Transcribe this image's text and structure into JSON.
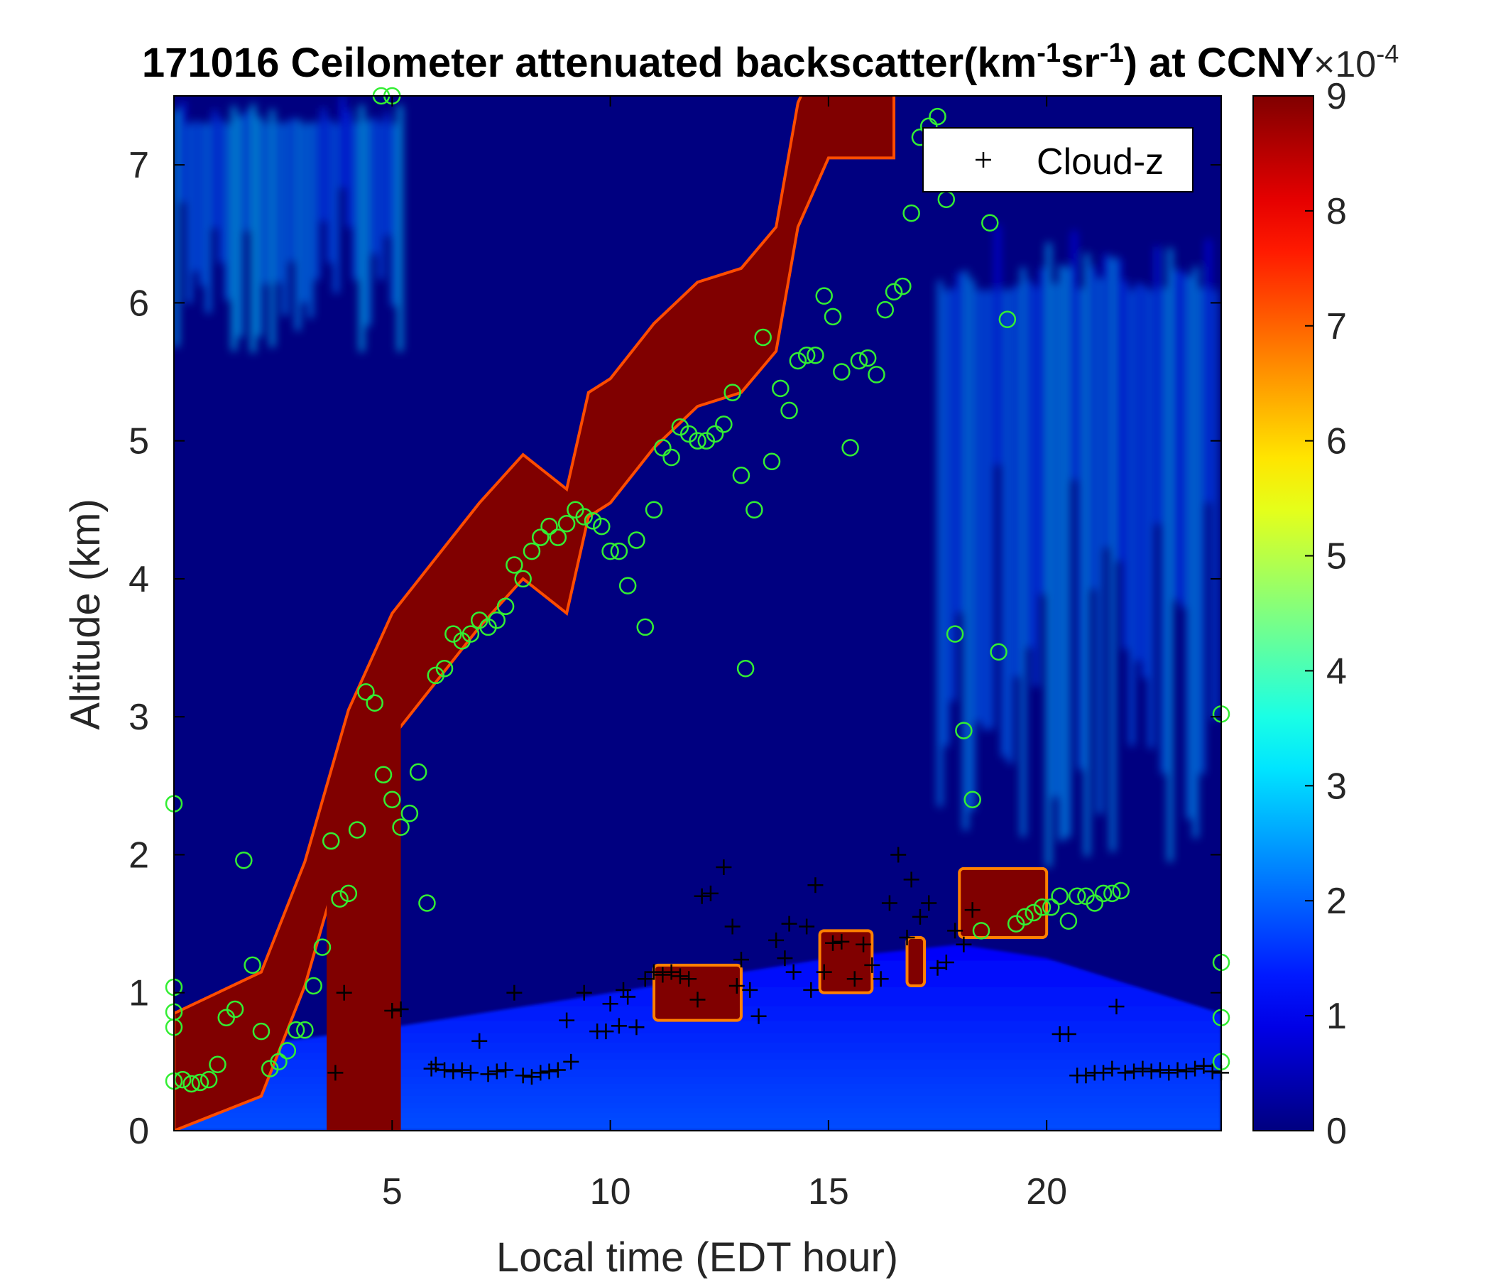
{
  "chart_data": {
    "type": "heatmap",
    "title": {
      "prefix": "171016 Ceilometer attenuated backscatter(km",
      "sup1": "-1",
      "middle": "sr",
      "sup2": "-1",
      "suffix": ") at CCNY"
    },
    "xlabel": "Local time (EDT hour)",
    "ylabel": "Altitude (km)",
    "xlim": [
      0,
      24
    ],
    "ylim": [
      0,
      7.5
    ],
    "xticks": [
      5,
      10,
      15,
      20
    ],
    "yticks": [
      0,
      1,
      2,
      3,
      4,
      5,
      6,
      7
    ],
    "colorbar": {
      "colormap": "jet",
      "range": [
        0,
        9
      ],
      "ticks": [
        0,
        1,
        2,
        3,
        4,
        5,
        6,
        7,
        8,
        9
      ],
      "exponent_label": "×10",
      "exponent_sup": "-4"
    },
    "legend": {
      "label": "Cloud-z",
      "marker": "+",
      "placement": "top-right"
    },
    "colors": {
      "cloud_z_marker": "#000000",
      "green_markers": "#33ee33",
      "frame": "#000000",
      "axis_text": "#262626"
    },
    "layers": {
      "background_level": 0.02,
      "boundary_layer": {
        "top_profile": [
          [
            0,
            0.55
          ],
          [
            5,
            0.75
          ],
          [
            10,
            1.0
          ],
          [
            15,
            1.25
          ],
          [
            18,
            1.35
          ],
          [
            20,
            1.25
          ],
          [
            24,
            0.85
          ]
        ],
        "level_at_surface": 0.2,
        "level_at_top": 0.12
      },
      "high_cirrus": [
        {
          "x_range": [
            0,
            5.2
          ],
          "y_range": [
            5.6,
            7.5
          ],
          "level": 0.15
        },
        {
          "x_range": [
            17.5,
            24
          ],
          "y_range": [
            1.8,
            6.6
          ],
          "level": 0.13
        }
      ],
      "strong_layer_path": [
        [
          0,
          0.4
        ],
        [
          2,
          0.7
        ],
        [
          3,
          1.5
        ],
        [
          4,
          2.6
        ],
        [
          5,
          3.3
        ],
        [
          6,
          3.7
        ],
        [
          7,
          4.1
        ],
        [
          8,
          4.45
        ],
        [
          9,
          4.2
        ],
        [
          9.5,
          4.9
        ],
        [
          10,
          5.0
        ],
        [
          11,
          5.4
        ],
        [
          12,
          5.7
        ],
        [
          13,
          5.8
        ],
        [
          13.8,
          6.1
        ],
        [
          14.3,
          7.0
        ],
        [
          15,
          7.5
        ],
        [
          16.5,
          7.5
        ]
      ],
      "strong_layer_thickness_km": 0.9,
      "low_clouds": [
        {
          "x_range": [
            11,
            13
          ],
          "y_range": [
            0.8,
            1.2
          ]
        },
        {
          "x_range": [
            14.8,
            16
          ],
          "y_range": [
            1.0,
            1.45
          ]
        },
        {
          "x_range": [
            16.8,
            17.2
          ],
          "y_range": [
            1.05,
            1.4
          ]
        },
        {
          "x_range": [
            18,
            20
          ],
          "y_range": [
            1.4,
            1.9
          ]
        }
      ]
    },
    "series": [
      {
        "name": "Cloud-z",
        "marker": "+",
        "points": [
          [
            3.7,
            0.42
          ],
          [
            3.9,
            1.0
          ],
          [
            5.0,
            0.87
          ],
          [
            5.2,
            0.88
          ],
          [
            5.9,
            0.45
          ],
          [
            6.0,
            0.48
          ],
          [
            6.2,
            0.44
          ],
          [
            6.4,
            0.43
          ],
          [
            6.6,
            0.44
          ],
          [
            6.8,
            0.42
          ],
          [
            7.0,
            0.65
          ],
          [
            7.2,
            0.41
          ],
          [
            7.4,
            0.43
          ],
          [
            7.6,
            0.44
          ],
          [
            7.8,
            1.0
          ],
          [
            8.0,
            0.4
          ],
          [
            8.2,
            0.39
          ],
          [
            8.4,
            0.42
          ],
          [
            8.6,
            0.43
          ],
          [
            8.8,
            0.44
          ],
          [
            9.0,
            0.8
          ],
          [
            9.1,
            0.5
          ],
          [
            9.4,
            1.0
          ],
          [
            9.7,
            0.72
          ],
          [
            9.9,
            0.72
          ],
          [
            10.0,
            0.92
          ],
          [
            10.2,
            0.76
          ],
          [
            10.3,
            1.02
          ],
          [
            10.4,
            0.97
          ],
          [
            10.6,
            0.75
          ],
          [
            10.8,
            1.1
          ],
          [
            11.0,
            1.15
          ],
          [
            11.2,
            1.13
          ],
          [
            11.4,
            1.15
          ],
          [
            11.6,
            1.12
          ],
          [
            11.8,
            1.1
          ],
          [
            12.0,
            0.95
          ],
          [
            12.1,
            1.7
          ],
          [
            12.3,
            1.72
          ],
          [
            12.6,
            1.91
          ],
          [
            12.8,
            1.48
          ],
          [
            12.9,
            1.05
          ],
          [
            13.0,
            1.24
          ],
          [
            13.2,
            1.02
          ],
          [
            13.4,
            0.83
          ],
          [
            13.8,
            1.38
          ],
          [
            14.0,
            1.25
          ],
          [
            14.1,
            1.5
          ],
          [
            14.2,
            1.15
          ],
          [
            14.5,
            1.48
          ],
          [
            14.6,
            1.02
          ],
          [
            14.7,
            1.78
          ],
          [
            14.9,
            1.15
          ],
          [
            15.1,
            1.36
          ],
          [
            15.3,
            1.37
          ],
          [
            15.6,
            1.1
          ],
          [
            15.8,
            1.35
          ],
          [
            16.0,
            1.2
          ],
          [
            16.2,
            1.1
          ],
          [
            16.4,
            1.65
          ],
          [
            16.6,
            2.0
          ],
          [
            16.8,
            1.4
          ],
          [
            16.9,
            1.82
          ],
          [
            17.1,
            1.55
          ],
          [
            17.3,
            1.65
          ],
          [
            17.5,
            1.18
          ],
          [
            17.7,
            1.22
          ],
          [
            17.9,
            1.45
          ],
          [
            18.1,
            1.35
          ],
          [
            18.3,
            1.6
          ],
          [
            20.3,
            0.7
          ],
          [
            20.5,
            0.7
          ],
          [
            20.7,
            0.4
          ],
          [
            20.9,
            0.4
          ],
          [
            21.1,
            0.42
          ],
          [
            21.3,
            0.42
          ],
          [
            21.5,
            0.45
          ],
          [
            21.6,
            0.9
          ],
          [
            21.8,
            0.42
          ],
          [
            22.0,
            0.43
          ],
          [
            22.2,
            0.45
          ],
          [
            22.4,
            0.43
          ],
          [
            22.6,
            0.44
          ],
          [
            22.8,
            0.42
          ],
          [
            23.0,
            0.44
          ],
          [
            23.2,
            0.43
          ],
          [
            23.4,
            0.45
          ],
          [
            23.6,
            0.47
          ],
          [
            23.8,
            0.43
          ],
          [
            24.0,
            0.42
          ]
        ]
      },
      {
        "marker": "o",
        "points": [
          [
            0.0,
            0.36
          ],
          [
            0.2,
            0.37
          ],
          [
            0.4,
            0.34
          ],
          [
            0.6,
            0.35
          ],
          [
            0.8,
            0.37
          ],
          [
            1.0,
            0.48
          ],
          [
            1.2,
            0.82
          ],
          [
            1.4,
            0.88
          ],
          [
            1.6,
            1.96
          ],
          [
            1.8,
            1.2
          ],
          [
            2.0,
            0.72
          ],
          [
            2.2,
            0.45
          ],
          [
            2.4,
            0.5
          ],
          [
            2.6,
            0.58
          ],
          [
            2.8,
            0.73
          ],
          [
            3.0,
            0.73
          ],
          [
            3.2,
            1.05
          ],
          [
            3.4,
            1.33
          ],
          [
            3.6,
            2.1
          ],
          [
            3.8,
            1.68
          ],
          [
            4.0,
            1.72
          ],
          [
            4.2,
            2.18
          ],
          [
            4.4,
            3.18
          ],
          [
            4.6,
            3.1
          ],
          [
            4.8,
            2.58
          ],
          [
            5.0,
            2.4
          ],
          [
            5.2,
            2.2
          ],
          [
            5.4,
            2.3
          ],
          [
            5.6,
            2.6
          ],
          [
            5.8,
            1.65
          ],
          [
            6.0,
            3.3
          ],
          [
            6.2,
            3.35
          ],
          [
            6.4,
            3.6
          ],
          [
            6.6,
            3.55
          ],
          [
            6.8,
            3.6
          ],
          [
            7.0,
            3.7
          ],
          [
            7.2,
            3.65
          ],
          [
            7.4,
            3.7
          ],
          [
            7.6,
            3.8
          ],
          [
            7.8,
            4.1
          ],
          [
            8.0,
            4.0
          ],
          [
            8.2,
            4.2
          ],
          [
            8.4,
            4.3
          ],
          [
            8.6,
            4.38
          ],
          [
            8.8,
            4.3
          ],
          [
            9.0,
            4.4
          ],
          [
            9.2,
            4.5
          ],
          [
            9.4,
            4.45
          ],
          [
            9.6,
            4.42
          ],
          [
            9.8,
            4.38
          ],
          [
            10.0,
            4.2
          ],
          [
            10.2,
            4.2
          ],
          [
            10.4,
            3.95
          ],
          [
            10.6,
            4.28
          ],
          [
            10.8,
            3.65
          ],
          [
            11.0,
            4.5
          ],
          [
            11.2,
            4.95
          ],
          [
            11.4,
            4.88
          ],
          [
            11.6,
            5.1
          ],
          [
            11.8,
            5.05
          ],
          [
            12.0,
            5.0
          ],
          [
            12.2,
            5.0
          ],
          [
            12.4,
            5.05
          ],
          [
            12.6,
            5.12
          ],
          [
            12.8,
            5.35
          ],
          [
            13.0,
            4.75
          ],
          [
            13.1,
            3.35
          ],
          [
            13.3,
            4.5
          ],
          [
            13.5,
            5.75
          ],
          [
            13.7,
            4.85
          ],
          [
            13.9,
            5.38
          ],
          [
            14.1,
            5.22
          ],
          [
            14.3,
            5.58
          ],
          [
            14.5,
            5.62
          ],
          [
            14.7,
            5.62
          ],
          [
            14.9,
            6.05
          ],
          [
            15.1,
            5.9
          ],
          [
            15.3,
            5.5
          ],
          [
            15.5,
            4.95
          ],
          [
            15.7,
            5.58
          ],
          [
            15.9,
            5.6
          ],
          [
            16.1,
            5.48
          ],
          [
            16.3,
            5.95
          ],
          [
            16.5,
            6.08
          ],
          [
            16.7,
            6.12
          ],
          [
            16.9,
            6.65
          ],
          [
            17.1,
            7.2
          ],
          [
            17.3,
            7.28
          ],
          [
            17.5,
            7.35
          ],
          [
            17.7,
            6.75
          ],
          [
            17.9,
            3.6
          ],
          [
            18.1,
            2.9
          ],
          [
            18.3,
            2.4
          ],
          [
            18.5,
            1.45
          ],
          [
            18.7,
            6.58
          ],
          [
            18.9,
            3.47
          ],
          [
            19.1,
            5.88
          ],
          [
            19.3,
            1.5
          ],
          [
            19.5,
            1.55
          ],
          [
            19.7,
            1.58
          ],
          [
            19.9,
            1.62
          ],
          [
            20.1,
            1.62
          ],
          [
            20.3,
            1.7
          ],
          [
            20.5,
            1.52
          ],
          [
            20.7,
            1.7
          ],
          [
            20.9,
            1.7
          ],
          [
            21.1,
            1.65
          ],
          [
            21.3,
            1.72
          ],
          [
            21.5,
            1.72
          ],
          [
            21.7,
            1.74
          ],
          [
            4.75,
            7.5
          ],
          [
            5.0,
            7.5
          ],
          [
            0.0,
            2.37
          ],
          [
            0.0,
            1.04
          ],
          [
            0.0,
            0.86
          ],
          [
            0.0,
            0.75
          ],
          [
            24.0,
            3.02
          ],
          [
            24.0,
            1.22
          ],
          [
            24.0,
            0.82
          ],
          [
            24.0,
            0.5
          ]
        ]
      }
    ]
  }
}
